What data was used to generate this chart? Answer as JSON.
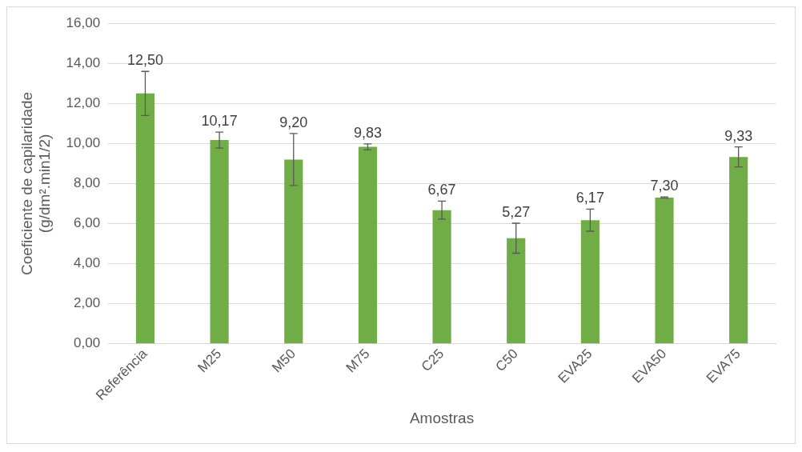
{
  "chart_data": {
    "type": "bar",
    "xlabel": "Amostras",
    "ylabel": "Coeficiente de capilaridade\n(g/dm².min1/2)",
    "categories": [
      "Referência",
      "M25",
      "M50",
      "M75",
      "C25",
      "C50",
      "EVA25",
      "EVA50",
      "EVA75"
    ],
    "values": [
      12.5,
      10.17,
      9.2,
      9.83,
      6.67,
      5.27,
      6.17,
      7.3,
      9.33
    ],
    "errors": [
      1.1,
      0.4,
      1.3,
      0.15,
      0.45,
      0.75,
      0.55,
      0.03,
      0.5
    ],
    "value_labels": [
      "12,50",
      "10,17",
      "9,20",
      "9,83",
      "6,67",
      "5,27",
      "6,17",
      "7,30",
      "9,33"
    ],
    "color": "#70ad47",
    "ylim": [
      0,
      16
    ],
    "yticks": [
      {
        "value": 0,
        "label": "0,00"
      },
      {
        "value": 2,
        "label": "2,00"
      },
      {
        "value": 4,
        "label": "4,00"
      },
      {
        "value": 6,
        "label": "6,00"
      },
      {
        "value": 8,
        "label": "8,00"
      },
      {
        "value": 10,
        "label": "10,00"
      },
      {
        "value": 12,
        "label": "12,00"
      },
      {
        "value": 14,
        "label": "14,00"
      },
      {
        "value": 16,
        "label": "16,00"
      }
    ],
    "grid": "y"
  }
}
